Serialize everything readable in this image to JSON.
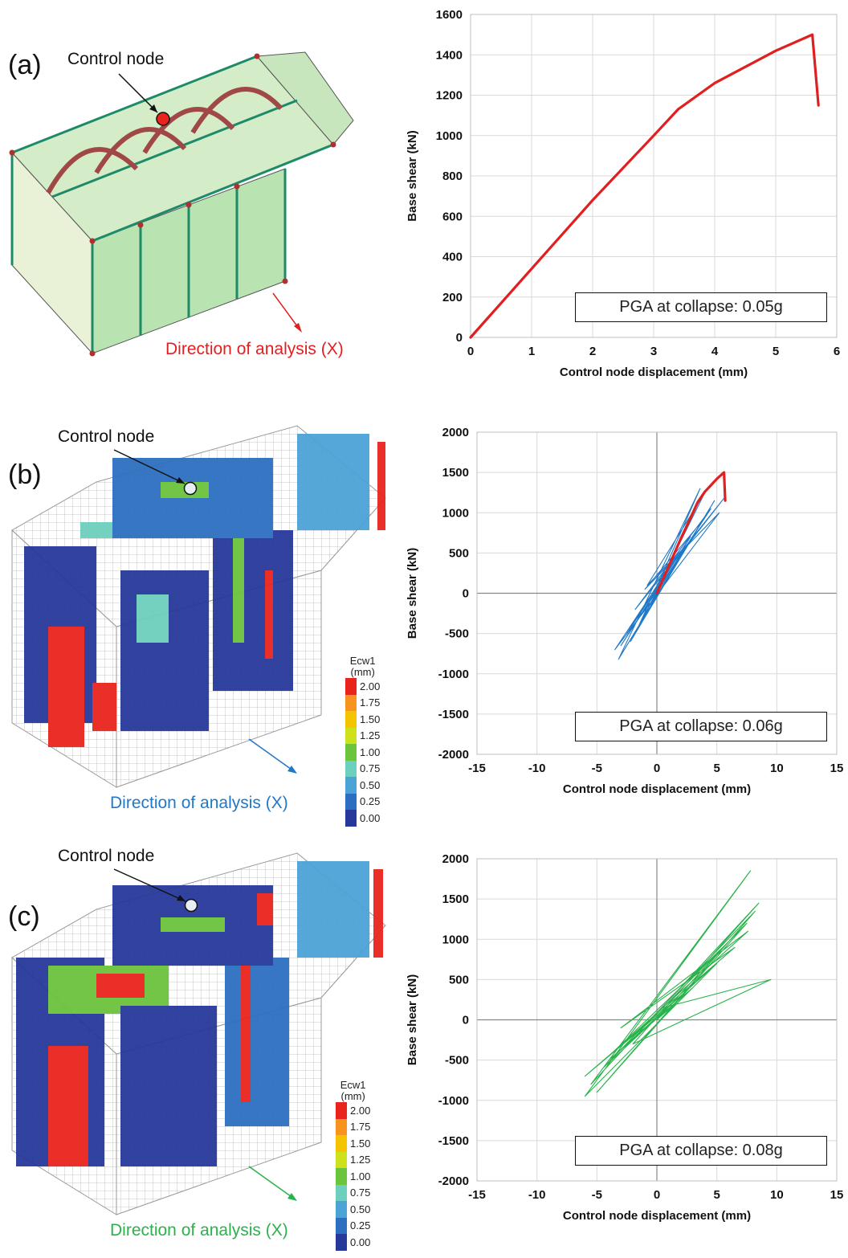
{
  "panels": [
    {
      "id": "a",
      "label": "(a)",
      "control_node_label": "Control node",
      "direction_label": "Direction of analysis (X)",
      "direction_color": "#e02020",
      "pga_text": "PGA at collapse: 0.05g",
      "has_legend": false
    },
    {
      "id": "b",
      "label": "(b)",
      "control_node_label": "Control node",
      "direction_label": "Direction of analysis (X)",
      "direction_color": "#1f78c8",
      "pga_text": "PGA at collapse: 0.06g",
      "has_legend": true
    },
    {
      "id": "c",
      "label": "(c)",
      "control_node_label": "Control node",
      "direction_label": "Direction of analysis (X)",
      "direction_color": "#2bb24c",
      "pga_text": "PGA at collapse: 0.08g",
      "has_legend": true
    }
  ],
  "legend": {
    "title": "Ecw1",
    "unit": "(mm)",
    "levels": [
      "2.00",
      "1.75",
      "1.50",
      "1.25",
      "1.00",
      "0.75",
      "0.50",
      "0.25",
      "0.00"
    ],
    "colors": [
      "#e8241c",
      "#f7941d",
      "#f5c400",
      "#cde21d",
      "#6cc43c",
      "#6dcfbd",
      "#4ba3d6",
      "#2c6fc0",
      "#26389a"
    ]
  },
  "chart_data": [
    {
      "type": "line",
      "xlabel": "Control node displacement (mm)",
      "ylabel": "Base shear (kN)",
      "xlim": [
        0,
        6
      ],
      "ylim": [
        0,
        1600
      ],
      "xticks": [
        "0",
        "1",
        "2",
        "3",
        "4",
        "5",
        "6"
      ],
      "yticks": [
        "0",
        "200",
        "400",
        "600",
        "800",
        "1000",
        "1200",
        "1400",
        "1600"
      ],
      "grid": true,
      "series": [
        {
          "color": "#e02020",
          "x": [
            0,
            1.0,
            2.0,
            3.0,
            3.4,
            4.0,
            5.0,
            5.6,
            5.7
          ],
          "y": [
            0,
            340,
            680,
            1000,
            1130,
            1260,
            1420,
            1500,
            1150
          ]
        }
      ],
      "annotation": "PGA at collapse: 0.05g"
    },
    {
      "type": "line",
      "xlabel": "Control node displacement (mm)",
      "ylabel": "Base shear (kN)",
      "xlim": [
        -15,
        15
      ],
      "ylim": [
        -2000,
        2000
      ],
      "xticks": [
        "-15",
        "-10",
        "-5",
        "0",
        "5",
        "10",
        "15"
      ],
      "yticks": [
        "-2000",
        "-1500",
        "-1000",
        "-500",
        "0",
        "500",
        "1000",
        "1500",
        "2000"
      ],
      "grid": true,
      "series": [
        {
          "style": "hysteresis",
          "color": "#1f78c8",
          "x": [
            0,
            0.8,
            -1.5,
            1.5,
            -2.5,
            2.8,
            -3,
            4.5,
            -1.8,
            5.6,
            0.2,
            3.6,
            -3.2,
            4.8,
            -0.5,
            1.2,
            -2.2,
            3.8,
            -1,
            5.2,
            -3.5,
            0.5,
            4,
            -0.8,
            2.5,
            0
          ],
          "y": [
            0,
            350,
            -400,
            450,
            -500,
            700,
            -650,
            1050,
            -200,
            1180,
            150,
            1300,
            -820,
            1150,
            -150,
            350,
            -600,
            900,
            50,
            1000,
            -700,
            200,
            1250,
            100,
            600,
            0
          ]
        },
        {
          "color": "#e02020",
          "x": [
            0,
            1.0,
            2.0,
            3.0,
            3.4,
            4.0,
            5.0,
            5.6,
            5.7
          ],
          "y": [
            0,
            340,
            680,
            1000,
            1130,
            1260,
            1420,
            1500,
            1150
          ]
        }
      ],
      "annotation": "PGA at collapse: 0.06g"
    },
    {
      "type": "line",
      "xlabel": "Control node displacement (mm)",
      "ylabel": "Base shear (kN)",
      "xlim": [
        -15,
        15
      ],
      "ylim": [
        -2000,
        2000
      ],
      "xticks": [
        "-15",
        "-10",
        "-5",
        "0",
        "5",
        "10",
        "15"
      ],
      "yticks": [
        "-2000",
        "-1500",
        "-1000",
        "-500",
        "0",
        "500",
        "1000",
        "1500",
        "2000"
      ],
      "grid": true,
      "series": [
        {
          "style": "hysteresis",
          "color": "#2bb24c",
          "x": [
            0,
            3,
            -4,
            5,
            -6,
            7.8,
            -5.5,
            8.5,
            -2,
            9.5,
            0.5,
            7.5,
            -5,
            8.2,
            -4.5,
            2,
            -6,
            6.5,
            -3,
            7.6,
            -4,
            5.5,
            0
          ],
          "y": [
            0,
            400,
            -500,
            700,
            -950,
            1850,
            -800,
            1450,
            -300,
            500,
            150,
            1200,
            -900,
            1350,
            -600,
            300,
            -700,
            900,
            -100,
            1100,
            -450,
            900,
            0
          ]
        }
      ],
      "annotation": "PGA at collapse: 0.08g"
    }
  ]
}
